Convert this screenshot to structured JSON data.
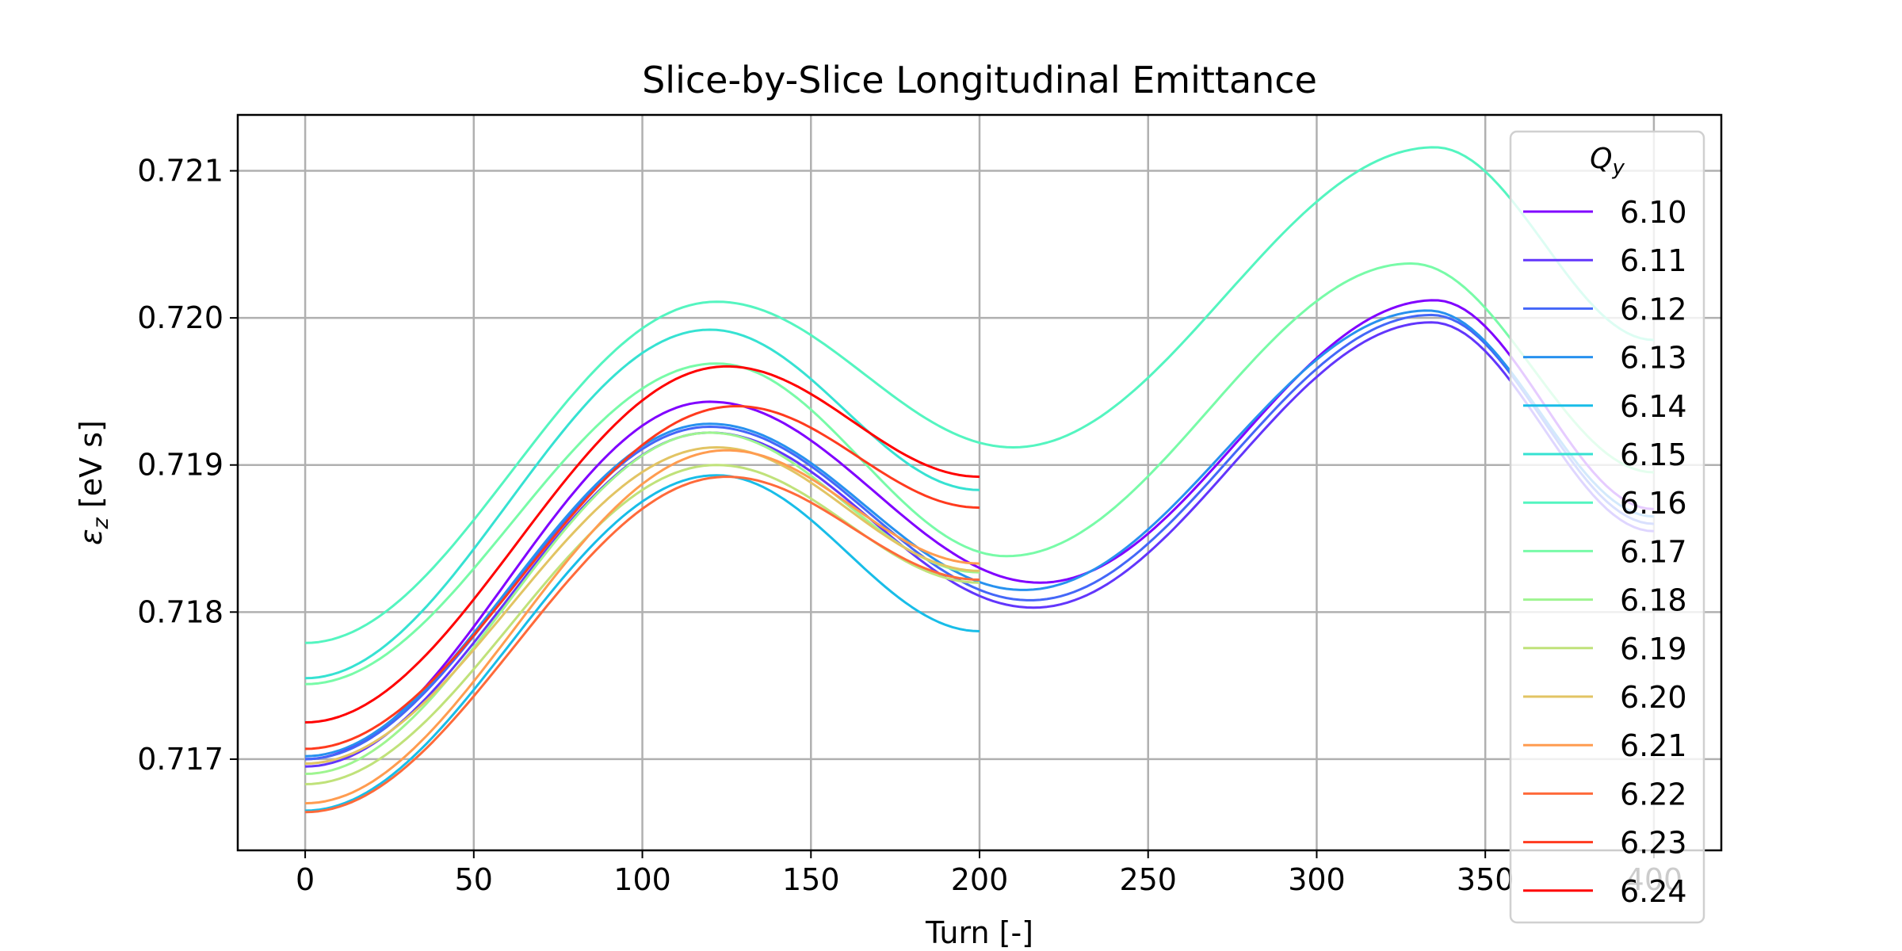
{
  "chart_data": {
    "type": "line",
    "title": "Slice-by-Slice Longitudinal Emittance",
    "xlabel": "Turn [-]",
    "ylabel_symbol": "ε",
    "ylabel_subscript": "z",
    "ylabel_unit": " [eV s]",
    "xlim": [
      -20,
      420
    ],
    "ylim": [
      0.71638,
      0.72138
    ],
    "xticks": [
      0,
      50,
      100,
      150,
      200,
      250,
      300,
      350,
      400
    ],
    "xtick_labels": [
      "0",
      "50",
      "100",
      "150",
      "200",
      "250",
      "300",
      "350",
      "400"
    ],
    "yticks": [
      0.717,
      0.718,
      0.719,
      0.72,
      0.721
    ],
    "ytick_labels": [
      "0.717",
      "0.718",
      "0.719",
      "0.720",
      "0.721"
    ],
    "grid": true,
    "legend": {
      "title_symbol": "Q",
      "title_subscript": "y",
      "placement": "upper-right"
    },
    "series": [
      {
        "name": "6.10",
        "color": "#8000ff",
        "x": [
          0,
          120,
          218,
          335,
          400
        ],
        "y": [
          0.717,
          0.71943,
          0.7182,
          0.72012,
          0.7187
        ]
      },
      {
        "name": "6.11",
        "color": "#6236fc",
        "x": [
          0,
          120,
          216,
          334,
          400
        ],
        "y": [
          0.71695,
          0.71922,
          0.71803,
          0.71997,
          0.71855
        ]
      },
      {
        "name": "6.12",
        "color": "#4467f8",
        "x": [
          0,
          120,
          215,
          334,
          400
        ],
        "y": [
          0.717,
          0.71926,
          0.71808,
          0.72002,
          0.7186
        ]
      },
      {
        "name": "6.13",
        "color": "#2791ef",
        "x": [
          0,
          120,
          213,
          333,
          400
        ],
        "y": [
          0.71702,
          0.71928,
          0.71815,
          0.72005,
          0.71865
        ]
      },
      {
        "name": "6.14",
        "color": "#18bde8",
        "x": [
          0,
          122,
          200
        ],
        "y": [
          0.71665,
          0.71893,
          0.71787
        ]
      },
      {
        "name": "6.15",
        "color": "#36e2d2",
        "x": [
          0,
          120,
          200
        ],
        "y": [
          0.71755,
          0.71992,
          0.71883
        ]
      },
      {
        "name": "6.16",
        "color": "#54f5c0",
        "x": [
          0,
          122,
          210,
          335,
          400
        ],
        "y": [
          0.71779,
          0.72011,
          0.71912,
          0.72116,
          0.71985
        ]
      },
      {
        "name": "6.17",
        "color": "#78fba8",
        "x": [
          0,
          122,
          208,
          328,
          400
        ],
        "y": [
          0.71751,
          0.71969,
          0.71838,
          0.72037,
          0.71895
        ]
      },
      {
        "name": "6.18",
        "color": "#9ef590",
        "x": [
          0,
          120,
          200
        ],
        "y": [
          0.7169,
          0.71922,
          0.71827
        ]
      },
      {
        "name": "6.19",
        "color": "#c0e27a",
        "x": [
          0,
          122,
          200
        ],
        "y": [
          0.71683,
          0.719,
          0.7182
        ]
      },
      {
        "name": "6.20",
        "color": "#e2c463",
        "x": [
          0,
          122,
          200
        ],
        "y": [
          0.71697,
          0.71912,
          0.71828
        ]
      },
      {
        "name": "6.21",
        "color": "#ff9c50",
        "x": [
          0,
          125,
          200
        ],
        "y": [
          0.7167,
          0.7191,
          0.71833
        ]
      },
      {
        "name": "6.22",
        "color": "#ff6a3a",
        "x": [
          0,
          125,
          200
        ],
        "y": [
          0.71664,
          0.71892,
          0.71822
        ]
      },
      {
        "name": "6.23",
        "color": "#ff3a1e",
        "x": [
          0,
          128,
          200
        ],
        "y": [
          0.71707,
          0.7194,
          0.71871
        ]
      },
      {
        "name": "6.24",
        "color": "#ff0000",
        "x": [
          0,
          125,
          200
        ],
        "y": [
          0.71725,
          0.71967,
          0.71892
        ]
      }
    ]
  }
}
